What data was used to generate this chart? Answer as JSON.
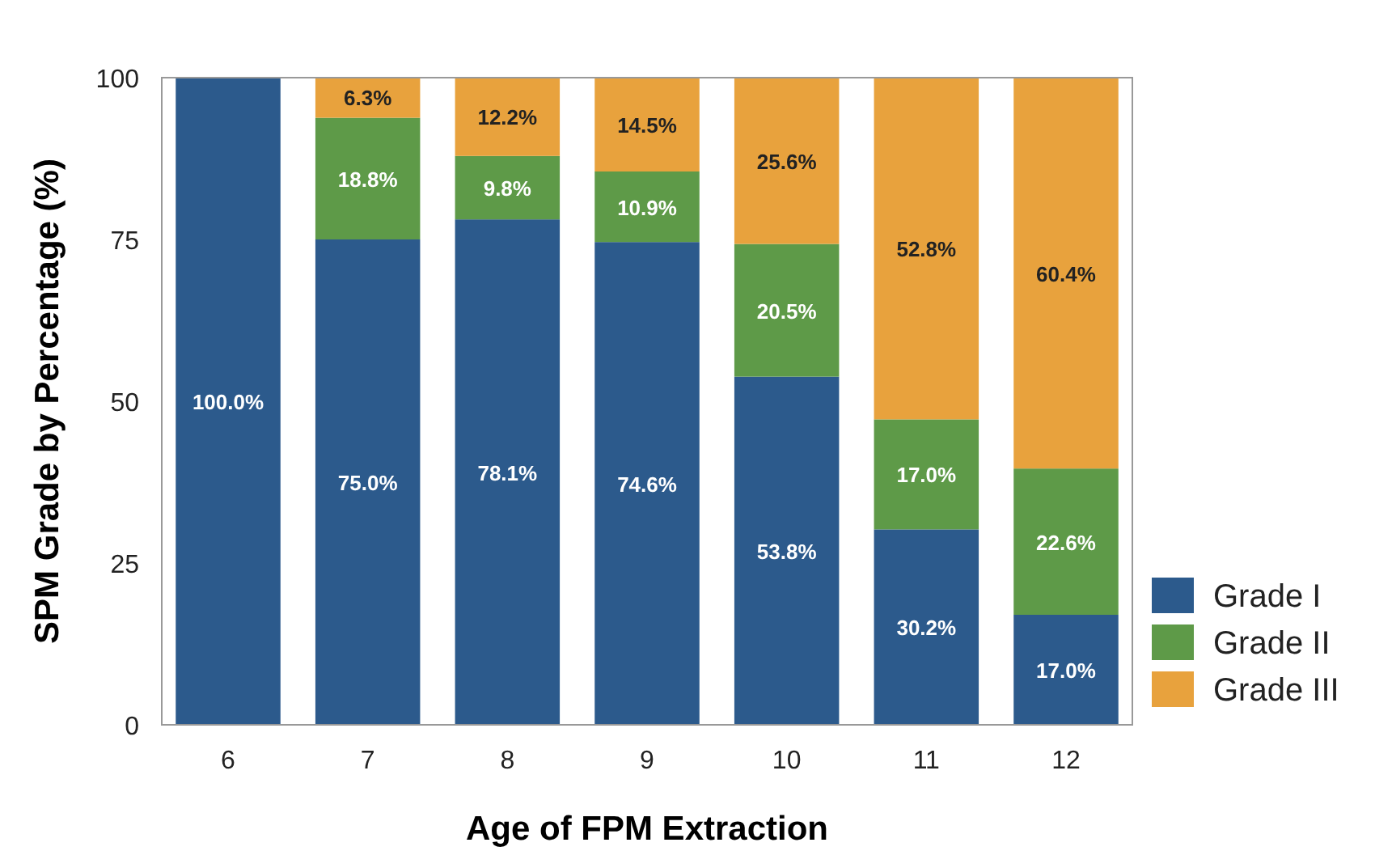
{
  "chart_data": {
    "type": "bar",
    "stacked": true,
    "xlabel": "Age of FPM Extraction",
    "ylabel": "SPM Grade by Percentage (%)",
    "categories": [
      "6",
      "7",
      "8",
      "9",
      "10",
      "11",
      "12"
    ],
    "ylim": [
      0,
      100
    ],
    "yticks": [
      0,
      25,
      50,
      75,
      100
    ],
    "grid": false,
    "legend": "bottom right",
    "series": [
      {
        "name": "Grade I",
        "color": "#2c5a8c",
        "values": [
          100.0,
          75.0,
          78.1,
          74.6,
          53.8,
          30.2,
          17.0
        ],
        "value_labels": [
          "100.0%",
          "75.0%",
          "78.1%",
          "74.6%",
          "53.8%",
          "30.2%",
          "17.0%"
        ]
      },
      {
        "name": "Grade II",
        "color": "#5e9a48",
        "values": [
          0,
          18.8,
          9.8,
          10.9,
          20.5,
          17.0,
          22.6
        ],
        "value_labels": [
          null,
          "18.8%",
          "9.8%",
          "10.9%",
          "20.5%",
          "17.0%",
          "22.6%"
        ]
      },
      {
        "name": "Grade III",
        "color": "#e8a23d",
        "values": [
          0,
          6.3,
          12.2,
          14.5,
          25.6,
          52.8,
          60.4
        ],
        "value_labels": [
          null,
          "6.3%",
          "12.2%",
          "14.5%",
          "25.6%",
          "52.8%",
          "60.4%"
        ]
      }
    ]
  }
}
